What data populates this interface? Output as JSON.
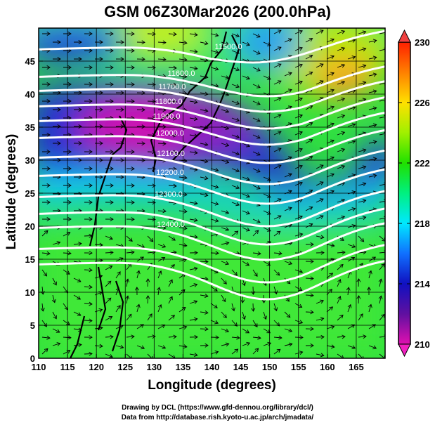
{
  "title": "GSM 06Z30Mar2026 (200.0hPa)",
  "chart_data": {
    "type": "heatmap",
    "title": "GSM 06Z30Mar2026 (200.0hPa)",
    "xlabel": "Longitude (degrees)",
    "ylabel": "Latitude  (degrees)",
    "xlim": [
      110,
      170
    ],
    "ylim": [
      0,
      50
    ],
    "xticks": [
      "110",
      "115",
      "120",
      "125",
      "130",
      "135",
      "140",
      "145",
      "150",
      "155",
      "160",
      "165"
    ],
    "yticks": [
      "0",
      "5",
      "10",
      "15",
      "20",
      "25",
      "30",
      "35",
      "40",
      "45"
    ],
    "colorbar": {
      "min": 210,
      "max": 230,
      "ticks": [
        "210",
        "214",
        "218",
        "222",
        "226",
        "230"
      ]
    },
    "contour_labels": [
      "11500.0",
      "11600.0",
      "11700.0",
      "11800.0",
      "11900.0",
      "12000.0",
      "12100.0",
      "12200.0",
      "12300.0",
      "12400.0"
    ],
    "overlay": "streamlines"
  },
  "credits": {
    "line1": "Drawing by DCL (https://www.gfd-dennou.org/library/dcl/)",
    "line2": "Data from http://database.rish.kyoto-u.ac.jp/arch/jmadata/"
  }
}
